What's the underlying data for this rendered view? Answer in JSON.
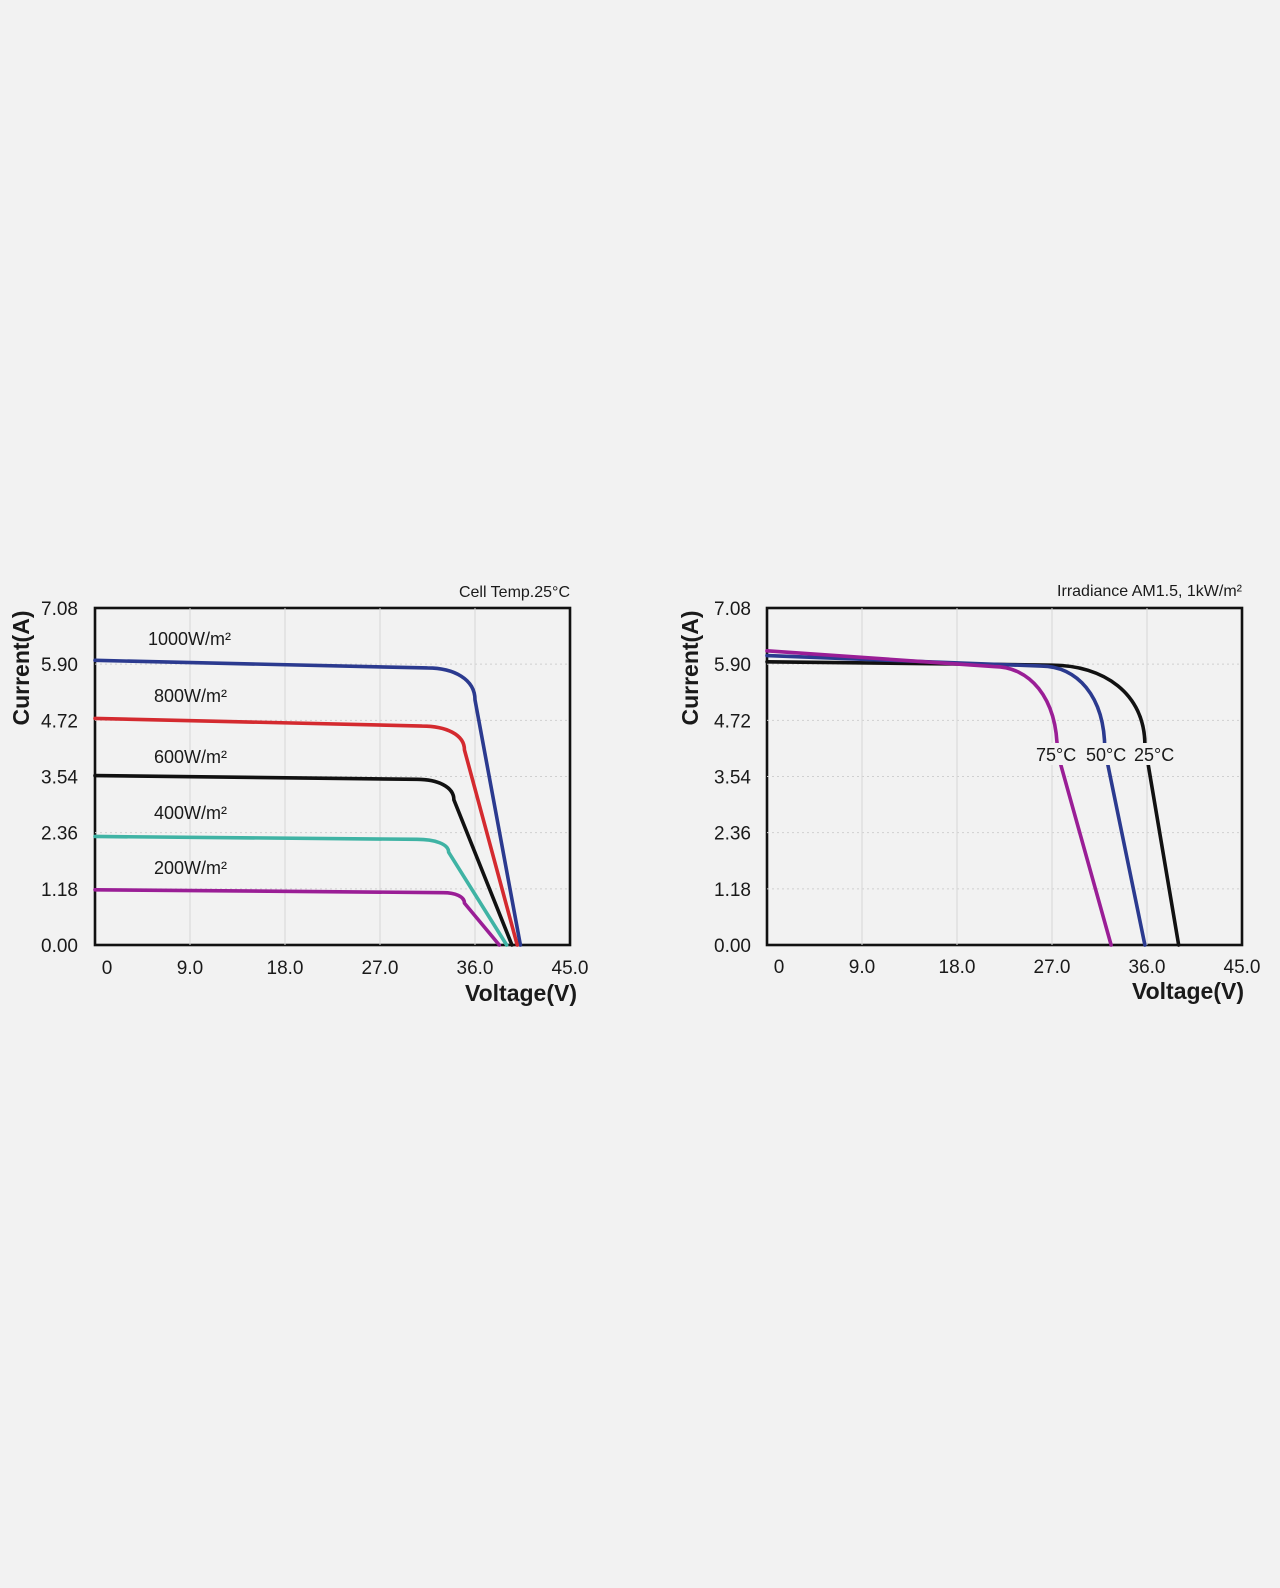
{
  "chart_data": [
    {
      "type": "line",
      "annotation": "Cell Temp.25°C",
      "xlabel": "Voltage(V)",
      "ylabel": "Current(A)",
      "xlim": [
        0,
        45
      ],
      "ylim": [
        0,
        7.08
      ],
      "x_ticks": [
        "0",
        "9.0",
        "18.0",
        "27.0",
        "36.0",
        "45.0"
      ],
      "y_ticks": [
        "0.00",
        "1.18",
        "2.36",
        "3.54",
        "4.72",
        "5.90",
        "7.08"
      ],
      "grid": true,
      "series": [
        {
          "name": "1000W/m²",
          "color": "#2b3a8f",
          "isc": 5.98,
          "imp": 5.82,
          "knee_v": 31.5,
          "roll_v": 36.0,
          "roll_i": 5.15,
          "voc": 40.3
        },
        {
          "name": "800W/m²",
          "color": "#d42a2f",
          "isc": 4.76,
          "imp": 4.6,
          "knee_v": 31.0,
          "roll_v": 35.0,
          "roll_i": 4.1,
          "voc": 40.0
        },
        {
          "name": "600W/m²",
          "color": "#111111",
          "isc": 3.56,
          "imp": 3.48,
          "knee_v": 30.5,
          "roll_v": 34.0,
          "roll_i": 3.05,
          "voc": 39.5
        },
        {
          "name": "400W/m²",
          "color": "#3fb3a4",
          "isc": 2.28,
          "imp": 2.22,
          "knee_v": 30.5,
          "roll_v": 33.5,
          "roll_i": 1.95,
          "voc": 39.0
        },
        {
          "name": "200W/m²",
          "color": "#9a1e96",
          "isc": 1.16,
          "imp": 1.1,
          "knee_v": 33.0,
          "roll_v": 35.0,
          "roll_i": 0.88,
          "voc": 38.3
        }
      ]
    },
    {
      "type": "line",
      "annotation": "Irradiance AM1.5, 1kW/m²",
      "xlabel": "Voltage(V)",
      "ylabel": "Current(A)",
      "xlim": [
        0,
        45
      ],
      "ylim": [
        0,
        7.08
      ],
      "x_ticks": [
        "0",
        "9.0",
        "18.0",
        "27.0",
        "36.0",
        "45.0"
      ],
      "y_ticks": [
        "0.00",
        "1.18",
        "2.36",
        "3.54",
        "4.72",
        "5.90",
        "7.08"
      ],
      "grid": true,
      "series": [
        {
          "name": "25°C",
          "color": "#111111",
          "isc": 5.95,
          "imp": 5.88,
          "knee_v": 27.0,
          "roll_v": 35.8,
          "roll_i": 4.2,
          "voc": 39.0
        },
        {
          "name": "50°C",
          "color": "#2b3a8f",
          "isc": 6.08,
          "imp": 5.86,
          "knee_v": 26.0,
          "roll_v": 32.0,
          "roll_i": 4.1,
          "voc": 35.8
        },
        {
          "name": "75°C",
          "color": "#9a1e96",
          "isc": 6.18,
          "imp": 5.85,
          "knee_v": 21.5,
          "roll_v": 27.5,
          "roll_i": 4.05,
          "voc": 32.6
        }
      ]
    }
  ]
}
